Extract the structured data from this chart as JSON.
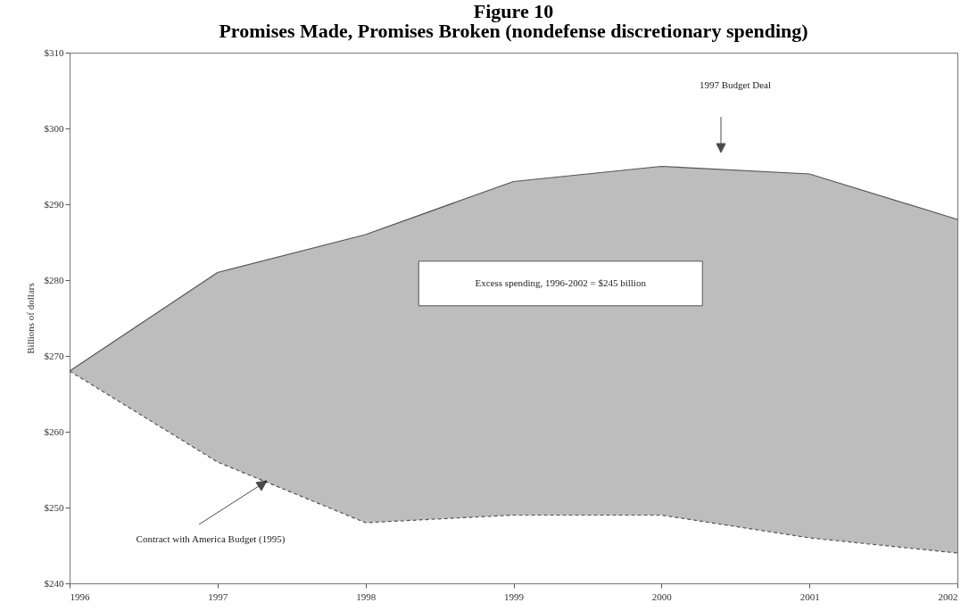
{
  "chart_data": {
    "type": "area",
    "title": "Figure 10",
    "subtitle": "Promises Made, Promises Broken (nondefense discretionary spending)",
    "ylabel": "Billions of dollars",
    "x": [
      1996,
      1997,
      1998,
      1999,
      2000,
      2001,
      2002
    ],
    "series": [
      {
        "type": "area",
        "color": "#bdbdbd",
        "line_style": "solid",
        "values": [
          268,
          281,
          286,
          293,
          295,
          294,
          288
        ]
      },
      {
        "type": "line",
        "color": "#555555",
        "line_style": "dashed",
        "values": [
          268,
          256,
          248,
          249,
          249,
          246,
          244
        ]
      }
    ],
    "xlim": [
      1996,
      2002
    ],
    "xticks": [
      1996,
      1997,
      1998,
      1999,
      2000,
      2001,
      2002
    ],
    "ylim": [
      240,
      310
    ],
    "yticks": [
      {
        "value": 240,
        "label": "$240"
      },
      {
        "value": 250,
        "label": "$250"
      },
      {
        "value": 260,
        "label": "$260"
      },
      {
        "value": 270,
        "label": "$270"
      },
      {
        "value": 280,
        "label": "$280"
      },
      {
        "value": 290,
        "label": "$290"
      },
      {
        "value": 300,
        "label": "$300"
      },
      {
        "value": 310,
        "label": "$310"
      }
    ],
    "annotations": [
      "1997 Budget Deal",
      "Excess spending, 1996-2002 = $245 billion",
      "Contract with America Budget (1995)"
    ]
  }
}
